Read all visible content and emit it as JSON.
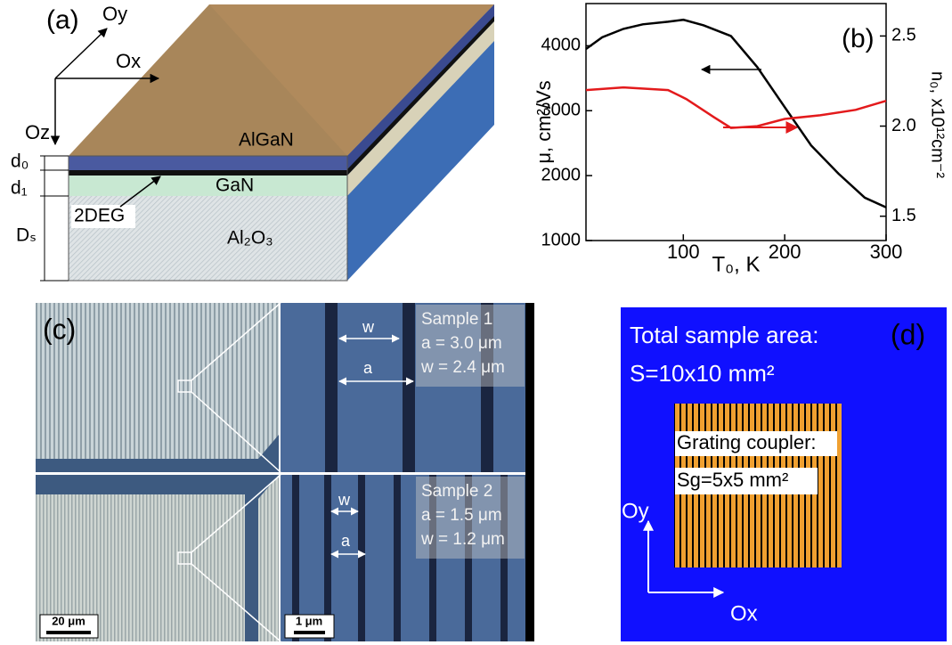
{
  "panel_a": {
    "label": "(a)",
    "axes": [
      "Oy",
      "Ox",
      "Oz"
    ],
    "layers": [
      "AlGaN",
      "GaN",
      "2DEG",
      "Al₂O₃"
    ],
    "thicknesses": [
      "d₀",
      "d₁",
      "Dₛ"
    ]
  },
  "chart_data": {
    "type": "line",
    "panel_label": "(b)",
    "x_label": "T₀, K",
    "y_label": "μ, cm²/Vs",
    "y2_label": "n₀, x10¹²cm⁻²",
    "xlim": [
      4,
      300
    ],
    "xticks": [
      100,
      200,
      300
    ],
    "ylim": [
      1000,
      4650
    ],
    "yticks": [
      1000,
      2000,
      3000,
      4000
    ],
    "y2lim": [
      1.365,
      2.68
    ],
    "y2ticks": [
      1.5,
      {
        "value": 2.0,
        "label": "2.0"
      },
      2.5
    ],
    "series": [
      {
        "color": "#000000",
        "x": [
          4,
          20,
          41,
          60,
          85,
          100,
          120,
          147,
          173,
          200,
          226,
          253,
          279,
          300
        ],
        "values": [
          3950,
          4130,
          4260,
          4330,
          4370,
          4400,
          4315,
          4150,
          3670,
          3055,
          2465,
          2030,
          1660,
          1510
        ]
      },
      {
        "color": "#e31a1c",
        "axis": "y2",
        "x": [
          4,
          41,
          85,
          103,
          130,
          147,
          173,
          200,
          235,
          270,
          300
        ],
        "values": [
          2.2,
          2.215,
          2.2,
          2.15,
          2.05,
          1.99,
          2.0,
          2.04,
          2.06,
          2.09,
          2.14
        ]
      }
    ]
  },
  "panel_c": {
    "label": "(c)",
    "sample_1": [
      "Sample 1",
      "a = 3.0 μm",
      "w = 2.4 μm"
    ],
    "sample_2": [
      "Sample 2",
      "a = 1.5 μm",
      "w = 1.2 μm"
    ],
    "marks": [
      "w",
      "a"
    ],
    "scale_bars": [
      "20 μm",
      "1 μm"
    ]
  },
  "panel_d": {
    "label": "(d)",
    "total": [
      "Total sample area:",
      "S=10x10 mm²"
    ],
    "grating": [
      "Grating coupler:",
      "Sg=5x5 mm²"
    ],
    "axes": [
      "Oy",
      "Ox"
    ]
  }
}
